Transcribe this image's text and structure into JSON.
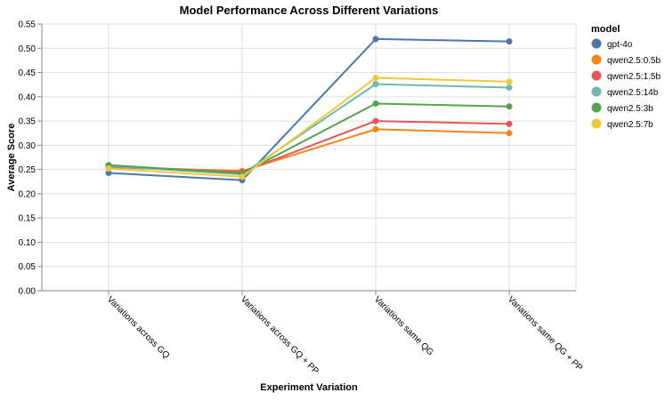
{
  "chart_data": {
    "type": "line",
    "title": "Model Performance Across Different Variations",
    "xlabel": "Experiment Variation",
    "ylabel": "Average Score",
    "categories": [
      "Variations across GQ",
      "Variations across GQ + PP",
      "Variations same QG",
      "Variations same QG + PP"
    ],
    "ylim": [
      0,
      0.55
    ],
    "yticks": [
      "0.00",
      "0.05",
      "0.10",
      "0.15",
      "0.20",
      "0.25",
      "0.30",
      "0.35",
      "0.40",
      "0.45",
      "0.50",
      "0.55"
    ],
    "grid": true,
    "legend": {
      "title": "model",
      "position": "right"
    },
    "series": [
      {
        "name": "gpt-4o",
        "color": "#4c78a8",
        "values": [
          0.243,
          0.228,
          0.519,
          0.514
        ]
      },
      {
        "name": "qwen2.5:0.5b",
        "color": "#f58518",
        "values": [
          0.255,
          0.247,
          0.333,
          0.325
        ]
      },
      {
        "name": "qwen2.5:1.5b",
        "color": "#e45756",
        "values": [
          0.255,
          0.245,
          0.35,
          0.344
        ]
      },
      {
        "name": "qwen2.5:14b",
        "color": "#72b7b2",
        "values": [
          0.257,
          0.24,
          0.426,
          0.419
        ]
      },
      {
        "name": "qwen2.5:3b",
        "color": "#54a24b",
        "values": [
          0.259,
          0.242,
          0.386,
          0.38
        ]
      },
      {
        "name": "qwen2.5:7b",
        "color": "#eeca3b",
        "values": [
          0.252,
          0.235,
          0.439,
          0.431
        ]
      }
    ]
  }
}
